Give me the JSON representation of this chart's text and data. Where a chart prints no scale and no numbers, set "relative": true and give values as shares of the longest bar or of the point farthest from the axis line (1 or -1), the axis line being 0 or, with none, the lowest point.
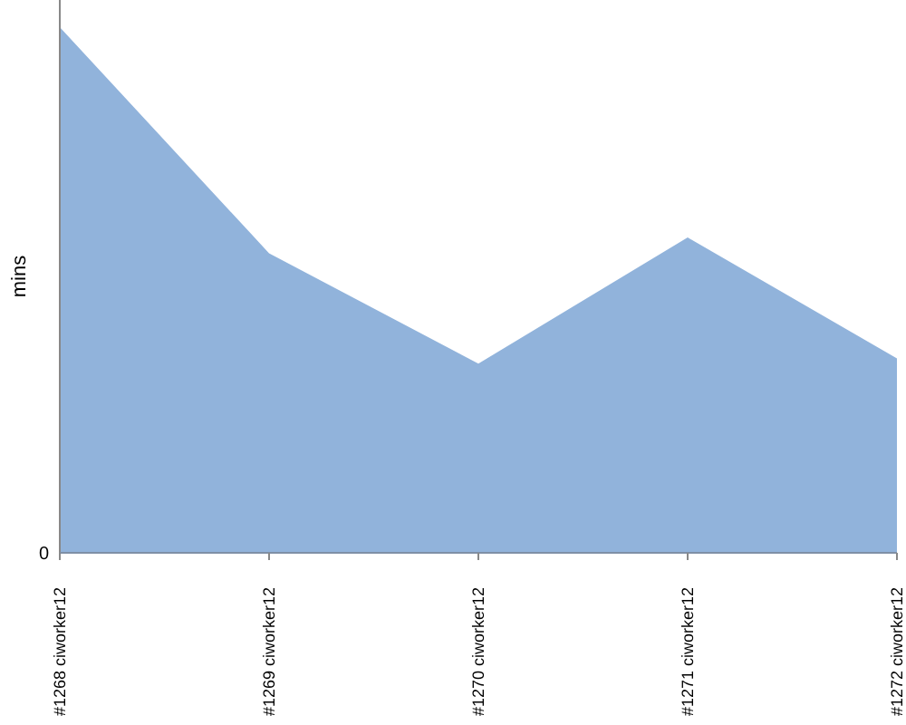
{
  "chart_data": {
    "type": "area",
    "ylabel": "mins",
    "relative": true,
    "annotations": [
      "0"
    ],
    "categories": [
      "#1268 ciworker12",
      "#1269 ciworker12",
      "#1270 ciworker12",
      "#1271 ciworker12",
      "#1272 ciworker12"
    ],
    "series": [
      {
        "color": "#91b3db",
        "values": [
          1,
          0.57,
          0.36,
          0.6,
          0.37
        ]
      }
    ]
  }
}
